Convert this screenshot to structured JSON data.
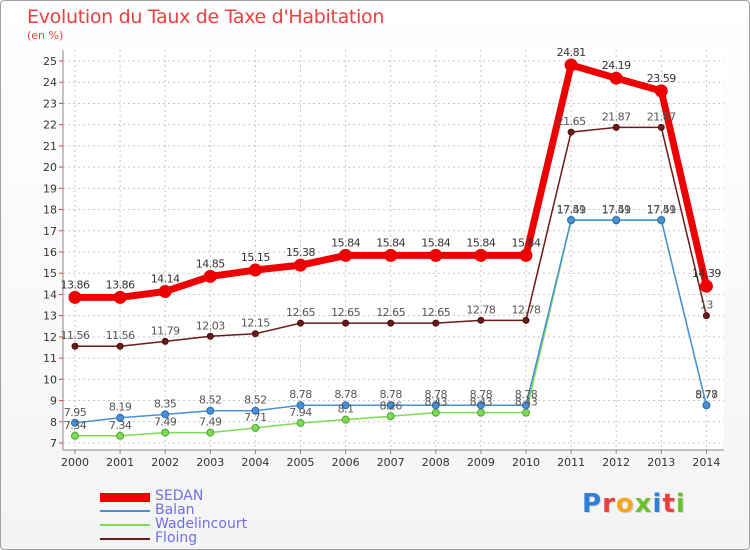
{
  "title": "Evolution du Taux de Taxe d'Habitation",
  "subtitle": "(en %)",
  "logo": {
    "text": "Proxiti",
    "colors": [
      "#2f7fd6",
      "#e8403f",
      "#f6a623",
      "#6cbf2e",
      "#2f7fd6",
      "#e8403f",
      "#6cbf2e"
    ]
  },
  "chart_data": {
    "type": "line",
    "title": "Evolution du Taux de Taxe d'Habitation",
    "ylabel": "(en %)",
    "xlabel": "",
    "ylim": [
      7,
      25
    ],
    "yticks": [
      7,
      8,
      9,
      10,
      11,
      12,
      13,
      14,
      15,
      16,
      17,
      18,
      19,
      20,
      21,
      22,
      23,
      24,
      25
    ],
    "categories": [
      "2000",
      "2001",
      "2002",
      "2003",
      "2004",
      "2005",
      "2006",
      "2007",
      "2008",
      "2009",
      "2010",
      "2011",
      "2012",
      "2013",
      "2014"
    ],
    "grid": true,
    "legend_position": "bottom-left",
    "series": [
      {
        "name": "SEDAN",
        "color": "#ee0000",
        "values": [
          13.86,
          13.86,
          14.14,
          14.85,
          15.15,
          15.38,
          15.84,
          15.84,
          15.84,
          15.84,
          15.84,
          24.81,
          24.19,
          23.59,
          14.39
        ],
        "labels": [
          "13.86",
          "13.86",
          "14.14",
          "14.85",
          "15.15",
          "15.38",
          "15.84",
          "15.84",
          "15.84",
          "15.84",
          "15.84",
          "24.81",
          "24.19",
          "23.59",
          "14.39"
        ]
      },
      {
        "name": "Balan",
        "color": "#4a90d9",
        "values": [
          7.95,
          8.19,
          8.35,
          8.52,
          8.52,
          8.78,
          8.78,
          8.78,
          8.78,
          8.78,
          8.78,
          17.51,
          17.51,
          17.51,
          8.78
        ],
        "labels": [
          "7.95",
          "8.19",
          "8.35",
          "8.52",
          "8.52",
          "8.78",
          "8.78",
          "8.78",
          "8.78",
          "8.78",
          "8.78",
          "17.51",
          "17.51",
          "17.51",
          "8.78"
        ]
      },
      {
        "name": "Wadelincourt",
        "color": "#7ed957",
        "values": [
          7.34,
          7.34,
          7.49,
          7.49,
          7.71,
          7.94,
          8.1,
          8.26,
          8.43,
          8.43,
          8.43,
          17.49,
          17.49,
          17.49,
          8.77
        ],
        "labels": [
          "7.34",
          "7.34",
          "7.49",
          "7.49",
          "7.71",
          "7.94",
          "8.1",
          "8.26",
          "8.43",
          "8.43",
          "8.43",
          "17.49",
          "17.49",
          "17.49",
          "8.77"
        ]
      },
      {
        "name": "Floing",
        "color": "#6b1a1a",
        "values": [
          11.56,
          11.56,
          11.79,
          12.03,
          12.15,
          12.65,
          12.65,
          12.65,
          12.65,
          12.78,
          12.78,
          21.65,
          21.87,
          21.87,
          13
        ],
        "labels": [
          "11.56",
          "11.56",
          "11.79",
          "12.03",
          "12.15",
          "12.65",
          "12.65",
          "12.65",
          "12.65",
          "12.78",
          "12.78",
          "21.65",
          "21.87",
          "21.87",
          "13"
        ]
      }
    ]
  }
}
